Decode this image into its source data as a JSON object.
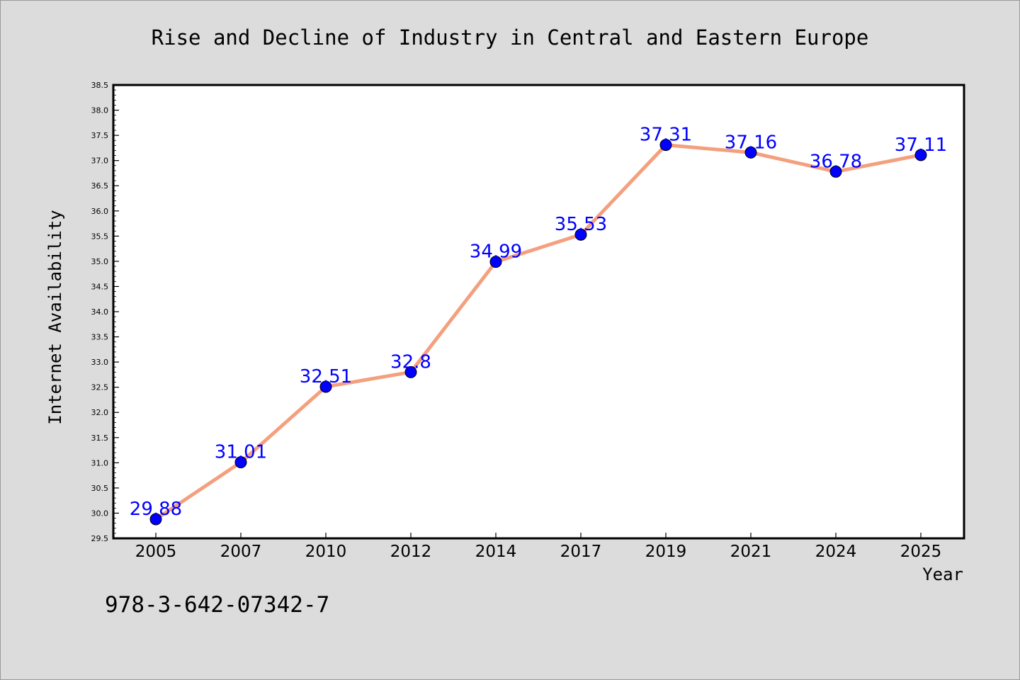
{
  "chart_data": {
    "type": "line",
    "title": "Rise and Decline of Industry in Central and Eastern Europe",
    "xlabel": "Year",
    "ylabel": "Internet Availability",
    "categories": [
      "2005",
      "2007",
      "2010",
      "2012",
      "2014",
      "2017",
      "2019",
      "2021",
      "2024",
      "2025"
    ],
    "series": [
      {
        "values": [
          29.88,
          31.01,
          32.51,
          32.8,
          34.99,
          35.53,
          37.31,
          37.16,
          36.78,
          37.11
        ],
        "line_color": "#f4a07e",
        "marker_color": "#0000ff",
        "label_color": "#0000ff"
      }
    ],
    "data_labels": [
      "29.88",
      "31.01",
      "32.51",
      "32.8",
      "34.99",
      "35.53",
      "37.31",
      "37.16",
      "36.78",
      "37.11"
    ],
    "ylim": [
      29.5,
      38.5
    ],
    "yticks": [
      29.5,
      30.0,
      30.5,
      31.0,
      31.5,
      32.0,
      32.5,
      33.0,
      33.5,
      34.0,
      34.5,
      35.0,
      35.5,
      36.0,
      36.5,
      37.0,
      37.5,
      38.0,
      38.5
    ],
    "ytick_labels": [
      "29.5",
      "30.0",
      "30.5",
      "31.0",
      "31.5",
      "32.0",
      "32.5",
      "33.0",
      "33.5",
      "34.0",
      "34.5",
      "35.0",
      "35.5",
      "36.0",
      "36.5",
      "37.0",
      "37.5",
      "38.0",
      "38.5"
    ],
    "grid": false,
    "legend": "none"
  },
  "annotation": "978-3-642-07342-7",
  "colors": {
    "background": "#dcdcdc",
    "plot_background": "#ffffff",
    "axis": "#000000"
  }
}
